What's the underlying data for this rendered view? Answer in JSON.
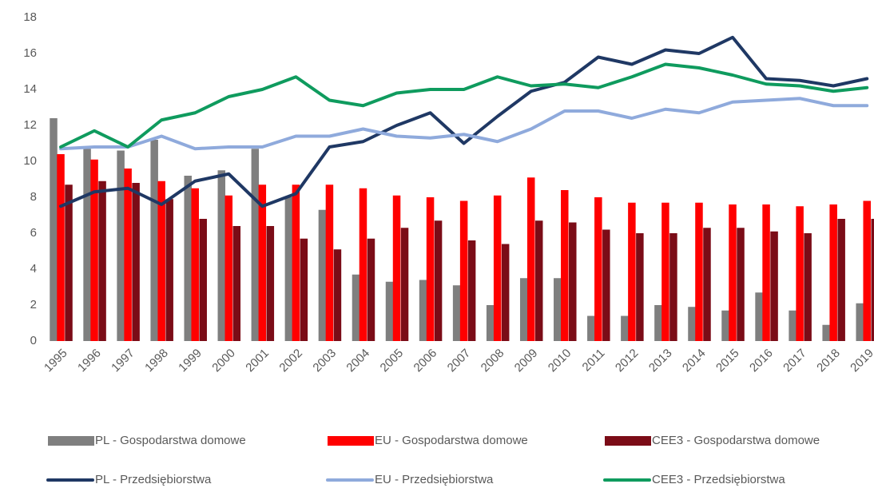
{
  "chart_data": {
    "type": "combo",
    "categories": [
      "1995",
      "1996",
      "1997",
      "1998",
      "1999",
      "2000",
      "2001",
      "2002",
      "2003",
      "2004",
      "2005",
      "2006",
      "2007",
      "2008",
      "2009",
      "2010",
      "2011",
      "2012",
      "2013",
      "2014",
      "2015",
      "2016",
      "2017",
      "2018",
      "2019"
    ],
    "ylim": [
      0,
      18
    ],
    "yticks": [
      0,
      2,
      4,
      6,
      8,
      10,
      12,
      14,
      16,
      18
    ],
    "grid": false,
    "legend": "bottom",
    "series": [
      {
        "name": "PL - Gospodarstwa domowe",
        "type": "bar",
        "color": "#7f7f7f",
        "values": [
          12.4,
          10.7,
          10.6,
          11.2,
          9.2,
          9.5,
          10.7,
          8.0,
          7.3,
          3.7,
          3.3,
          3.4,
          3.1,
          2.0,
          3.5,
          3.5,
          1.4,
          1.4,
          2.0,
          1.9,
          1.7,
          2.7,
          1.7,
          0.9,
          2.1
        ]
      },
      {
        "name": "EU - Gospodarstwa domowe",
        "type": "bar",
        "color": "#ff0000",
        "values": [
          10.4,
          10.1,
          9.6,
          8.9,
          8.5,
          8.1,
          8.7,
          8.7,
          8.7,
          8.5,
          8.1,
          8.0,
          7.8,
          8.1,
          9.1,
          8.4,
          8.0,
          7.7,
          7.7,
          7.7,
          7.6,
          7.6,
          7.5,
          7.6,
          7.8
        ]
      },
      {
        "name": "CEE3 - Gospodarstwa domowe",
        "type": "bar",
        "color": "#7b0c17",
        "values": [
          8.7,
          8.9,
          8.8,
          7.9,
          6.8,
          6.4,
          6.4,
          5.7,
          5.1,
          5.7,
          6.3,
          6.7,
          5.6,
          5.4,
          6.7,
          6.6,
          6.2,
          6.0,
          6.0,
          6.3,
          6.3,
          6.1,
          6.0,
          6.8,
          6.8
        ]
      },
      {
        "name": "PL - Przedsiębiorstwa",
        "type": "line",
        "color": "#1f3864",
        "values": [
          7.5,
          8.3,
          8.5,
          7.6,
          8.9,
          9.3,
          7.5,
          8.2,
          10.8,
          11.1,
          12.0,
          12.7,
          11.0,
          12.5,
          13.9,
          14.4,
          15.8,
          15.4,
          16.2,
          16.0,
          16.9,
          14.6,
          14.5,
          14.2,
          14.6
        ]
      },
      {
        "name": "EU - Przedsiębiorstwa",
        "type": "line",
        "color": "#8faadc",
        "values": [
          10.7,
          10.8,
          10.8,
          11.4,
          10.7,
          10.8,
          10.8,
          11.4,
          11.4,
          11.8,
          11.4,
          11.3,
          11.5,
          11.1,
          11.8,
          12.8,
          12.8,
          12.4,
          12.9,
          12.7,
          13.3,
          13.4,
          13.5,
          13.1,
          13.1
        ]
      },
      {
        "name": "CEE3 - Przedsiębiorstwa",
        "type": "line",
        "color": "#0f9b5e",
        "values": [
          10.8,
          11.7,
          10.8,
          12.3,
          12.7,
          13.6,
          14.0,
          14.7,
          13.4,
          13.1,
          13.8,
          14.0,
          14.0,
          14.7,
          14.2,
          14.3,
          14.1,
          14.7,
          15.4,
          15.2,
          14.8,
          14.3,
          14.2,
          13.9,
          14.1
        ]
      }
    ]
  }
}
